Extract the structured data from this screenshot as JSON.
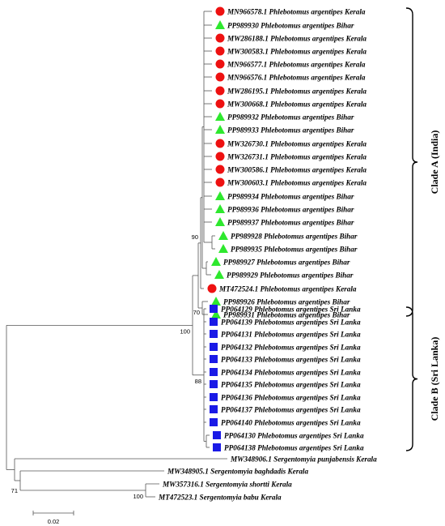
{
  "colors": {
    "kerala": "#ee1111",
    "bihar": "#2ee82e",
    "srilanka": "#1a1ae6",
    "line": "#555555"
  },
  "legend_shapes": {
    "kerala": "red-circle",
    "bihar": "green-triangle",
    "srilanka": "blue-square"
  },
  "taxa": [
    {
      "id": "t1",
      "label": "MN966578.1 Phlebotomus argentipes Kerala",
      "group": "kerala"
    },
    {
      "id": "t2",
      "label": "PP989930 Phlebotomus argentipes Bihar",
      "group": "bihar"
    },
    {
      "id": "t3",
      "label": "MW286188.1 Phlebotomus argentipes Kerala",
      "group": "kerala"
    },
    {
      "id": "t4",
      "label": "MW300583.1 Phlebotomus argentipes Kerala",
      "group": "kerala"
    },
    {
      "id": "t5",
      "label": "MN966577.1 Phlebotomus argentipes Kerala",
      "group": "kerala"
    },
    {
      "id": "t6",
      "label": "MN966576.1 Phlebotomus argentipes Kerala",
      "group": "kerala"
    },
    {
      "id": "t7",
      "label": "MW286195.1 Phlebotomus argentipes Kerala",
      "group": "kerala"
    },
    {
      "id": "t8",
      "label": "MW300668.1 Phlebotomus argentipes Kerala",
      "group": "kerala"
    },
    {
      "id": "t9",
      "label": "PP989932 Phlebotomus argentipes Bihar",
      "group": "bihar"
    },
    {
      "id": "t10",
      "label": "PP989933 Phlebotomus argentipes Bihar",
      "group": "bihar"
    },
    {
      "id": "t11",
      "label": "MW326730.1 Phlebotomus argentipes Kerala",
      "group": "kerala"
    },
    {
      "id": "t12",
      "label": "MW326731.1 Phlebotomus argentipes Kerala",
      "group": "kerala"
    },
    {
      "id": "t13",
      "label": "MW300586.1 Phlebotomus argentipes Kerala",
      "group": "kerala"
    },
    {
      "id": "t14",
      "label": "MW300603.1 Phlebotomus argentipes Kerala",
      "group": "kerala"
    },
    {
      "id": "t15",
      "label": "PP989934 Phlebotomus argentipes Bihar",
      "group": "bihar"
    },
    {
      "id": "t16",
      "label": "PP989936 Phlebotomus argentipes Bihar",
      "group": "bihar"
    },
    {
      "id": "t17",
      "label": "PP989937 Phlebotomus argentipes Bihar",
      "group": "bihar"
    },
    {
      "id": "t18",
      "label": "PP989928 Phlebotomus argentipes Bihar",
      "group": "bihar"
    },
    {
      "id": "t19",
      "label": "PP989935 Phlebotomus argentipes Bihar",
      "group": "bihar"
    },
    {
      "id": "t20",
      "label": "PP989927 Phlebotomus argentipes Bihar",
      "group": "bihar"
    },
    {
      "id": "t21",
      "label": "PP989929 Phlebotomus argentipes Bihar",
      "group": "bihar"
    },
    {
      "id": "t22",
      "label": "MT472524.1 Phlebotomus argentipes Kerala",
      "group": "kerala"
    },
    {
      "id": "t23",
      "label": "PP989926 Phlebotomus argentipes Bihar",
      "group": "bihar"
    },
    {
      "id": "t24",
      "label": "PP989931 Phlebotomus argentipes Bihar",
      "group": "bihar"
    },
    {
      "id": "t25",
      "label": "PP064129 Phlebotomus argentipes Sri Lanka",
      "group": "srilanka"
    },
    {
      "id": "t26",
      "label": "PP064139 Phlebotomus argentipes Sri Lanka",
      "group": "srilanka"
    },
    {
      "id": "t27",
      "label": "PP064131 Phlebotomus argentipes Sri Lanka",
      "group": "srilanka"
    },
    {
      "id": "t28",
      "label": "PP064132 Phlebotomus argentipes Sri Lanka",
      "group": "srilanka"
    },
    {
      "id": "t29",
      "label": "PP064133 Phlebotomus argentipes Sri Lanka",
      "group": "srilanka"
    },
    {
      "id": "t30",
      "label": "PP064134 Phlebotomus argentipes Sri Lanka",
      "group": "srilanka"
    },
    {
      "id": "t31",
      "label": "PP064135 Phlebotomus argentipes Sri Lanka",
      "group": "srilanka"
    },
    {
      "id": "t32",
      "label": "PP064136 Phlebotomus argentipes Sri Lanka",
      "group": "srilanka"
    },
    {
      "id": "t33",
      "label": "PP064137 Phlebotomus argentipes Sri Lanka",
      "group": "srilanka"
    },
    {
      "id": "t34",
      "label": "PP064140 Phlebotomus argentipes Sri Lanka",
      "group": "srilanka"
    },
    {
      "id": "t35",
      "label": "PP064130 Phlebotomus argentipes Sri Lanka",
      "group": "srilanka"
    },
    {
      "id": "t36",
      "label": "PP064138 Phlebotomus argentipes Sri Lanka",
      "group": "srilanka"
    },
    {
      "id": "t37",
      "label": "MW348906.1 Sergentomyia punjabensis Kerala",
      "group": "none"
    },
    {
      "id": "t38",
      "label": "MW348905.1 Sergentomyia baghdadis Kerala",
      "group": "none"
    },
    {
      "id": "t39",
      "label": "MW357316.1 Sergentomyia shortti Kerala",
      "group": "none"
    },
    {
      "id": "t40",
      "label": "MT472523.1 Sergentomyia babu Kerala",
      "group": "none"
    }
  ],
  "support_values": [
    {
      "node": "n_kerala_bihar",
      "value": "90"
    },
    {
      "node": "n_bihar_pair",
      "value": "70"
    },
    {
      "node": "n_argentipes",
      "value": "100"
    },
    {
      "node": "n_srilanka",
      "value": "88"
    },
    {
      "node": "n_sergent_pair",
      "value": "71"
    },
    {
      "node": "n_shortti_babu",
      "value": "100"
    }
  ],
  "clades": [
    {
      "id": "cladeA",
      "label": "Clade A (India)"
    },
    {
      "id": "cladeB",
      "label": "Clade B (Sri Lanka)"
    }
  ],
  "scale_bar": {
    "label": "0.02"
  }
}
